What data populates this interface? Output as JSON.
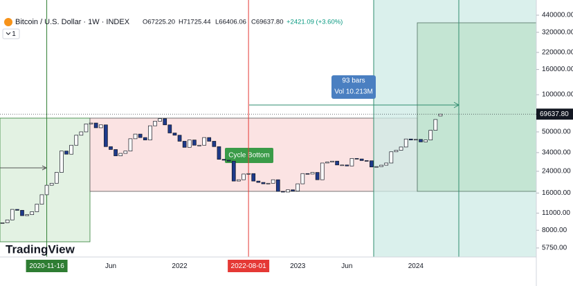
{
  "header": {
    "symbol": "Bitcoin / U.S. Dollar · 1W · INDEX",
    "open": "O67225.20",
    "high": "H71725.44",
    "low": "L66406.06",
    "close": "C69637.80",
    "change": "+2421.09 (+3.60%)",
    "interval_badge": "1"
  },
  "annotations": {
    "bars": "93 bars",
    "volume": "Vol 10.213M",
    "cycle": "Cycle Bottom",
    "brand": "TradingView"
  },
  "chart_data": {
    "type": "candlestick",
    "log_scale": true,
    "up_color": "#ffffff",
    "down_color": "#1e3a8a",
    "outline_color": "#131722",
    "categories": [
      null,
      null,
      null,
      null,
      null,
      null,
      null,
      null,
      null,
      "2020-11-16",
      null,
      null,
      null,
      null,
      null,
      null,
      null,
      null,
      null,
      null,
      null,
      null,
      "Jun",
      null,
      null,
      null,
      null,
      null,
      null,
      null,
      null,
      null,
      null,
      null,
      null,
      null,
      "2022",
      null,
      null,
      null,
      null,
      null,
      null,
      null,
      null,
      null,
      null,
      null,
      null,
      null,
      "2022-08-01",
      null,
      null,
      null,
      null,
      null,
      null,
      null,
      null,
      null,
      "2023",
      null,
      null,
      null,
      null,
      null,
      null,
      null,
      null,
      null,
      "Jun",
      null,
      null,
      null,
      null,
      null,
      null,
      null,
      null,
      null,
      null,
      null,
      null,
      null,
      "2024",
      null,
      null,
      null,
      null,
      null
    ],
    "open": [
      9100,
      9200,
      9700,
      11800,
      11600,
      10500,
      10700,
      11300,
      13000,
      15500,
      18500,
      19200,
      23500,
      35000,
      33000,
      39000,
      47000,
      50000,
      58000,
      59000,
      54000,
      57000,
      38000,
      36000,
      32000,
      33500,
      35000,
      44000,
      48000,
      45000,
      43000,
      56000,
      61000,
      64000,
      57000,
      49000,
      47000,
      42000,
      37500,
      43000,
      39000,
      39000,
      45000,
      42000,
      38000,
      30000,
      29500,
      29000,
      20000,
      20500,
      22800,
      23000,
      20000,
      19500,
      19000,
      19200,
      20500,
      16500,
      16300,
      17000,
      16600,
      19000,
      23000,
      22800,
      23500,
      20500,
      28000,
      28500,
      29000,
      27000,
      27000,
      26500,
      30500,
      30200,
      29300,
      29200,
      26000,
      26200,
      26900,
      28000,
      34500,
      35500,
      37700,
      43800,
      43000,
      43500,
      41500,
      43000,
      51500,
      67225.2
    ],
    "close": [
      9200,
      9700,
      11800,
      11600,
      10500,
      10700,
      11300,
      13000,
      15500,
      18500,
      19200,
      23500,
      35000,
      33000,
      39000,
      47000,
      50000,
      58000,
      59000,
      54000,
      57000,
      38000,
      36000,
      32000,
      33500,
      35000,
      44000,
      48000,
      45000,
      43000,
      56000,
      61000,
      64000,
      57000,
      49000,
      47000,
      42000,
      37500,
      43000,
      39000,
      39000,
      45000,
      42000,
      38000,
      30000,
      29500,
      29000,
      20000,
      20500,
      22800,
      23000,
      20000,
      19500,
      19000,
      19200,
      20500,
      16500,
      16300,
      17000,
      16600,
      19000,
      23000,
      22800,
      23500,
      20500,
      28000,
      28500,
      29000,
      27000,
      27000,
      26500,
      30500,
      30200,
      29300,
      29200,
      26000,
      26200,
      26900,
      28000,
      34500,
      35500,
      37700,
      43800,
      43000,
      43500,
      41500,
      43000,
      51500,
      63000,
      69637.8
    ],
    "ylim": [
      4860,
      584000
    ],
    "yticks": [
      {
        "value": 440000,
        "label": "440000.00"
      },
      {
        "value": 320000,
        "label": "320000.00"
      },
      {
        "value": 220000,
        "label": "220000.00"
      },
      {
        "value": 160000,
        "label": "160000.00"
      },
      {
        "value": 100000,
        "label": "100000.00"
      },
      {
        "value": 50000,
        "label": "50000.00"
      },
      {
        "value": 34000,
        "label": "34000.00"
      },
      {
        "value": 24000,
        "label": "24000.00"
      },
      {
        "value": 16000,
        "label": "16000.00"
      },
      {
        "value": 11000,
        "label": "11000.00"
      },
      {
        "value": 8000,
        "label": "8000.00"
      },
      {
        "value": 5750,
        "label": "5750.00"
      }
    ],
    "last_price": {
      "value": 69637.8,
      "label": "69637.80"
    }
  }
}
